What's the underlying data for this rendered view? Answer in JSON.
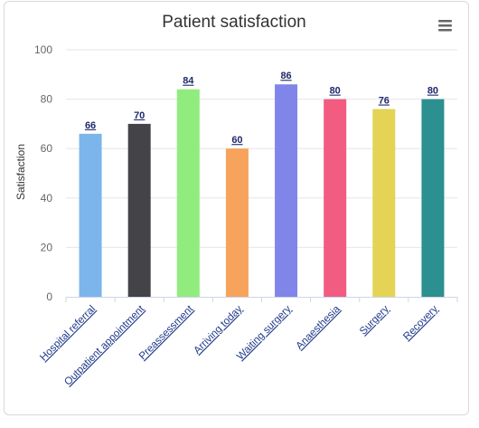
{
  "chart_data": {
    "type": "bar",
    "title": "Patient satisfaction",
    "ylabel": "Satisfaction",
    "xlabel": "",
    "categories": [
      "Hospital referral",
      "Outpatient appointment",
      "Preassessment",
      "Arriving today",
      "Waiting surgery",
      "Anaesthesia",
      "Surgery",
      "Recovery"
    ],
    "values": [
      66,
      70,
      84,
      60,
      86,
      80,
      76,
      80
    ],
    "colors": [
      "#7cb5ec",
      "#434348",
      "#90ed7d",
      "#f7a35c",
      "#8085e9",
      "#f15c80",
      "#e4d354",
      "#2b908f"
    ],
    "ylim": [
      0,
      100
    ],
    "yticks": [
      0,
      20,
      40,
      60,
      80,
      100
    ],
    "grid": true,
    "data_labels": true,
    "legend": "none"
  },
  "menu": {
    "icon": "hamburger-menu-icon"
  }
}
